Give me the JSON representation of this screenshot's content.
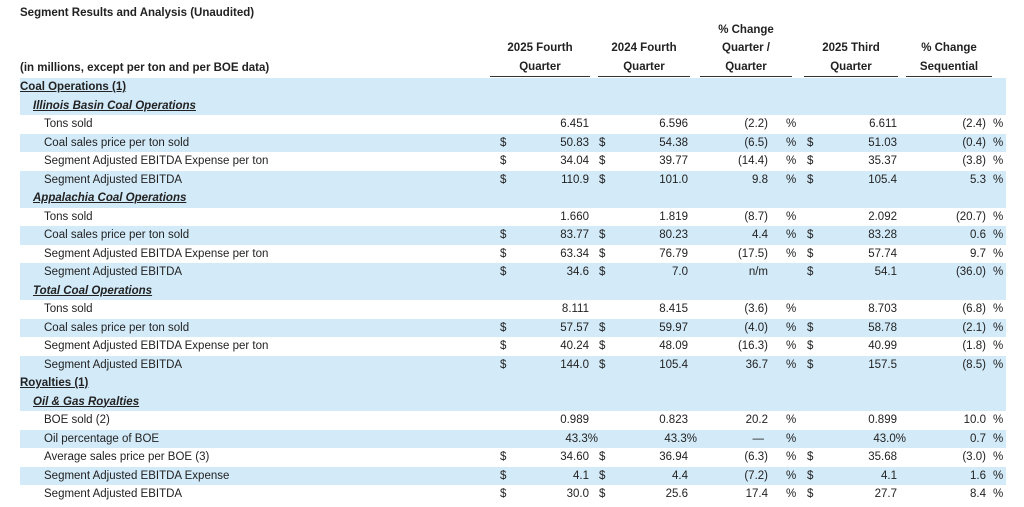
{
  "title": "Segment Results and Analysis (Unaudited)",
  "header": {
    "label": "(in millions, except per ton and per BOE data)",
    "columns": [
      [
        "2025 Fourth",
        "Quarter"
      ],
      [
        "2024 Fourth",
        "Quarter"
      ],
      [
        "% Change",
        "Quarter /",
        "Quarter"
      ],
      [
        "2025 Third",
        "Quarter"
      ],
      [
        "% Change",
        "Sequential"
      ]
    ]
  },
  "sections": [
    {
      "title": "Coal Operations (1)",
      "groups": [
        {
          "title": "Illinois Basin Coal Operations",
          "rows": [
            {
              "label": "Tons sold",
              "cells": [
                null,
                "6.451",
                null,
                "6.596",
                "(2.2)",
                "%",
                null,
                "6.611",
                "(2.4)",
                "%"
              ]
            },
            {
              "label": "Coal sales price per ton sold",
              "cells": [
                "$",
                "50.83",
                "$",
                "54.38",
                "(6.5)",
                "%",
                "$",
                "51.03",
                "(0.4)",
                "%"
              ]
            },
            {
              "label": "Segment Adjusted EBITDA Expense per ton",
              "cells": [
                "$",
                "34.04",
                "$",
                "39.77",
                "(14.4)",
                "%",
                "$",
                "35.37",
                "(3.8)",
                "%"
              ]
            },
            {
              "label": "Segment Adjusted EBITDA",
              "cells": [
                "$",
                "110.9",
                "$",
                "101.0",
                "9.8",
                "%",
                "$",
                "105.4",
                "5.3",
                "%"
              ]
            }
          ]
        },
        {
          "title": "Appalachia Coal Operations",
          "rows": [
            {
              "label": "Tons sold",
              "cells": [
                null,
                "1.660",
                null,
                "1.819",
                "(8.7)",
                "%",
                null,
                "2.092",
                "(20.7)",
                "%"
              ]
            },
            {
              "label": "Coal sales price per ton sold",
              "cells": [
                "$",
                "83.77",
                "$",
                "80.23",
                "4.4",
                "%",
                "$",
                "83.28",
                "0.6",
                "%"
              ]
            },
            {
              "label": "Segment Adjusted EBITDA Expense per ton",
              "cells": [
                "$",
                "63.34",
                "$",
                "76.79",
                "(17.5)",
                "%",
                "$",
                "57.74",
                "9.7",
                "%"
              ]
            },
            {
              "label": "Segment Adjusted EBITDA",
              "cells": [
                "$",
                "34.6",
                "$",
                "7.0",
                "n/m",
                null,
                "$",
                "54.1",
                "(36.0)",
                "%"
              ]
            }
          ]
        },
        {
          "title": "Total Coal Operations",
          "rows": [
            {
              "label": "Tons sold",
              "cells": [
                null,
                "8.111",
                null,
                "8.415",
                "(3.6)",
                "%",
                null,
                "8.703",
                "(6.8)",
                "%"
              ]
            },
            {
              "label": "Coal sales price per ton sold",
              "cells": [
                "$",
                "57.57",
                "$",
                "59.97",
                "(4.0)",
                "%",
                "$",
                "58.78",
                "(2.1)",
                "%"
              ]
            },
            {
              "label": "Segment Adjusted EBITDA Expense per ton",
              "cells": [
                "$",
                "40.24",
                "$",
                "48.09",
                "(16.3)",
                "%",
                "$",
                "40.99",
                "(1.8)",
                "%"
              ]
            },
            {
              "label": "Segment Adjusted EBITDA",
              "cells": [
                "$",
                "144.0",
                "$",
                "105.4",
                "36.7",
                "%",
                "$",
                "157.5",
                "(8.5)",
                "%"
              ]
            }
          ]
        }
      ]
    },
    {
      "title": "Royalties (1)",
      "groups": [
        {
          "title": "Oil & Gas Royalties",
          "rows": [
            {
              "label": "BOE sold (2)",
              "cells": [
                null,
                "0.989",
                null,
                "0.823",
                "20.2",
                "%",
                null,
                "0.899",
                "10.0",
                "%"
              ]
            },
            {
              "label": "Oil percentage of BOE",
              "cells": [
                null,
                "43.3%",
                null,
                "43.3%",
                "—",
                "%",
                null,
                "43.0%",
                "0.7",
                "%"
              ]
            },
            {
              "label": "Average sales price per BOE (3)",
              "cells": [
                "$",
                "34.60",
                "$",
                "36.94",
                "(6.3)",
                "%",
                "$",
                "35.68",
                "(3.0)",
                "%"
              ]
            },
            {
              "label": "Segment Adjusted EBITDA Expense",
              "cells": [
                "$",
                "4.1",
                "$",
                "4.4",
                "(7.2)",
                "%",
                "$",
                "4.1",
                "1.6",
                "%"
              ]
            },
            {
              "label": "Segment Adjusted EBITDA",
              "cells": [
                "$",
                "30.0",
                "$",
                "25.6",
                "17.4",
                "%",
                "$",
                "27.7",
                "8.4",
                "%"
              ]
            }
          ]
        }
      ]
    }
  ]
}
